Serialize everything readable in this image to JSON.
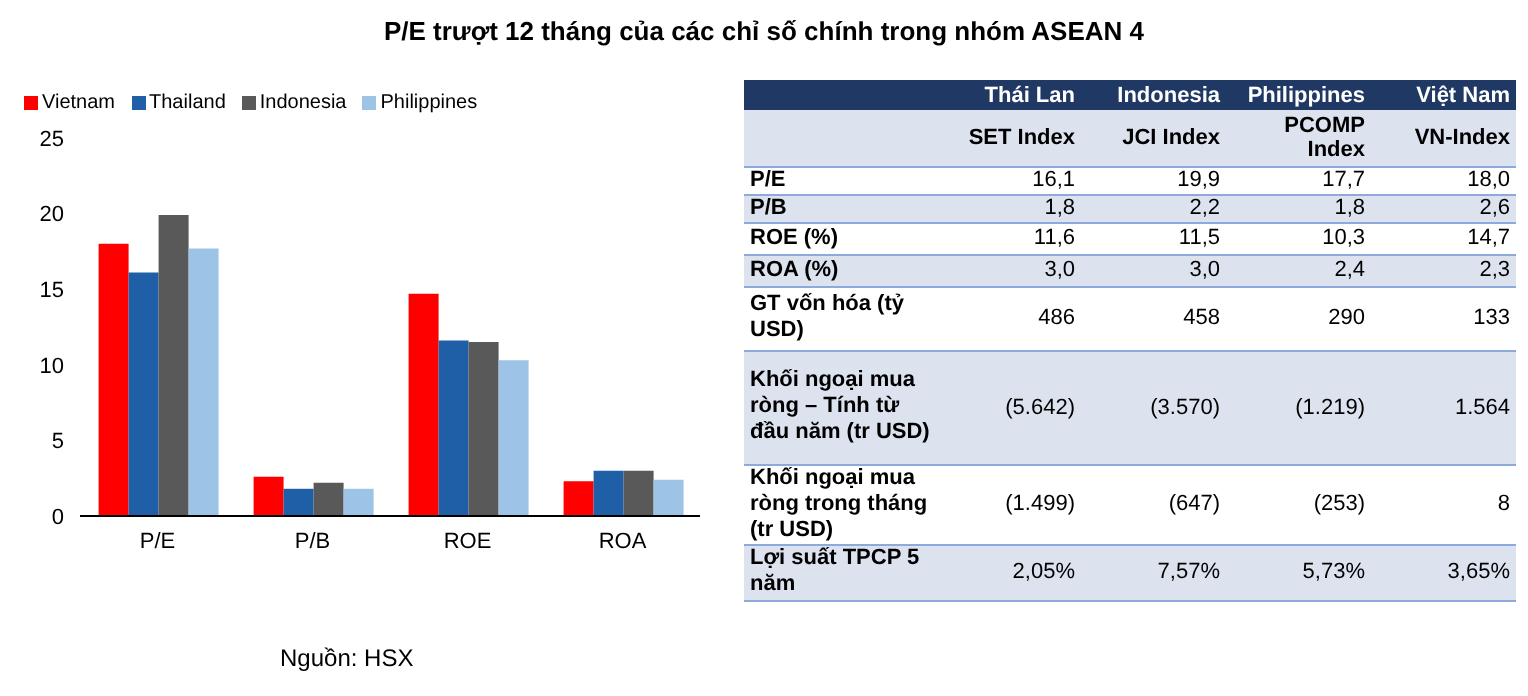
{
  "chart_data": [
    {
      "type": "bar",
      "title": "P/E trượt 12 tháng của các chỉ số chính trong nhóm ASEAN 4",
      "categories": [
        "P/E",
        "P/B",
        "ROE",
        "ROA"
      ],
      "series": [
        {
          "name": "Vietnam",
          "color": "#ff0000",
          "values": [
            18.0,
            2.6,
            14.7,
            2.3
          ]
        },
        {
          "name": "Thailand",
          "color": "#1f5fa8",
          "values": [
            16.1,
            1.8,
            11.6,
            3.0
          ]
        },
        {
          "name": "Indonesia",
          "color": "#595959",
          "values": [
            19.9,
            2.2,
            11.5,
            3.0
          ]
        },
        {
          "name": "Philippines",
          "color": "#9dc3e6",
          "values": [
            17.7,
            1.8,
            10.3,
            2.4
          ]
        }
      ],
      "ylim": [
        0,
        25
      ],
      "yticks": [
        0,
        5,
        10,
        15,
        20,
        25
      ],
      "grid": false,
      "legend": "top left",
      "annotations": [
        "Nguồn: HSX"
      ]
    },
    {
      "type": "other",
      "categories": [
        "Thái Lan",
        "Indonesia",
        "Philippines",
        "Việt Nam"
      ],
      "y_categories": [
        null,
        "P/E",
        "P/B",
        "ROE (%)",
        "ROA (%)",
        "GT vốn hóa (tỷ USD)",
        "Khối ngoại mua ròng – Tính từ đầu năm (tr USD)",
        "Khối ngoại mua ròng trong tháng (tr USD)",
        "Lợi suất TPCP 5 năm"
      ],
      "cell_labels": [
        [
          "SET Index",
          "JCI Index",
          "PCOMP Index",
          "VN-Index"
        ],
        [
          "16,1",
          "19,9",
          "17,7",
          "18,0"
        ],
        [
          "1,8",
          "2,2",
          "1,8",
          "2,6"
        ],
        [
          "11,6",
          "11,5",
          "10,3",
          "14,7"
        ],
        [
          "3,0",
          "3,0",
          "2,4",
          "2,3"
        ],
        [
          "486",
          "458",
          "290",
          "133"
        ],
        [
          "(5.642)",
          "(3.570)",
          "(1.219)",
          "1.564"
        ],
        [
          "(1.499)",
          "(647)",
          "(253)",
          "8"
        ],
        [
          "2,05%",
          "7,57%",
          "5,73%",
          "3,65%"
        ]
      ]
    }
  ]
}
